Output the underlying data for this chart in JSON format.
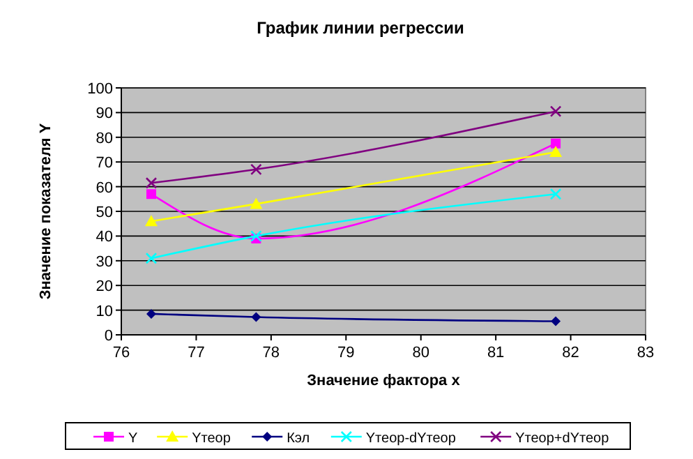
{
  "chart_data": {
    "type": "line",
    "title": "График линии регрессии",
    "xlabel": "Значение фактора x",
    "ylabel": "Значение показателя Y",
    "x": [
      76.4,
      77.8,
      81.8
    ],
    "series": [
      {
        "name": "Y",
        "color": "#ff00ff",
        "marker": "square",
        "values": [
          57,
          39,
          77.5
        ]
      },
      {
        "name": "Yтеор",
        "color": "#ffff00",
        "marker": "triangle",
        "values": [
          46,
          53,
          74
        ]
      },
      {
        "name": "Кэл",
        "color": "#000080",
        "marker": "diamond",
        "values": [
          8.5,
          7.2,
          5.5
        ]
      },
      {
        "name": "Yтеор-dYтеор",
        "color": "#00ffff",
        "marker": "cross",
        "values": [
          31,
          40,
          57
        ]
      },
      {
        "name": "Yтеор+dYтеор",
        "color": "#800080",
        "marker": "cross",
        "values": [
          61.5,
          67,
          90.5
        ]
      }
    ],
    "xlim": [
      76,
      83
    ],
    "xticks": [
      76,
      77,
      78,
      79,
      80,
      81,
      82,
      83
    ],
    "ylim": [
      0,
      100
    ],
    "yticks": [
      0,
      10,
      20,
      30,
      40,
      50,
      60,
      70,
      80,
      90,
      100
    ],
    "grid": "y",
    "legend": "bottom"
  }
}
